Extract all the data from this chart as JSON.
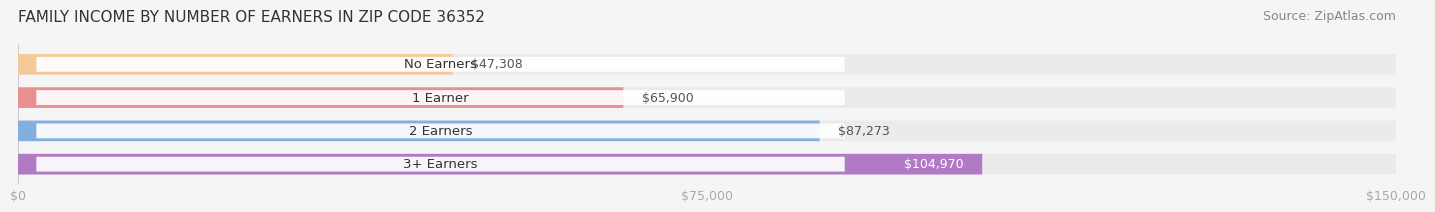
{
  "title": "FAMILY INCOME BY NUMBER OF EARNERS IN ZIP CODE 36352",
  "source": "Source: ZipAtlas.com",
  "categories": [
    "No Earners",
    "1 Earner",
    "2 Earners",
    "3+ Earners"
  ],
  "values": [
    47308,
    65900,
    87273,
    104970
  ],
  "bar_colors": [
    "#f5c99a",
    "#e89090",
    "#85aee0",
    "#b07ac5"
  ],
  "bar_bg_color": "#ebebeb",
  "label_colors": [
    "#555555",
    "#555555",
    "#555555",
    "#ffffff"
  ],
  "xlim": [
    0,
    150000
  ],
  "xticks": [
    0,
    75000,
    150000
  ],
  "xtick_labels": [
    "$0",
    "$75,000",
    "$150,000"
  ],
  "background_color": "#f5f5f5",
  "bar_height": 0.62,
  "title_fontsize": 11,
  "source_fontsize": 9,
  "label_fontsize": 9,
  "tick_fontsize": 9,
  "category_fontsize": 9.5
}
